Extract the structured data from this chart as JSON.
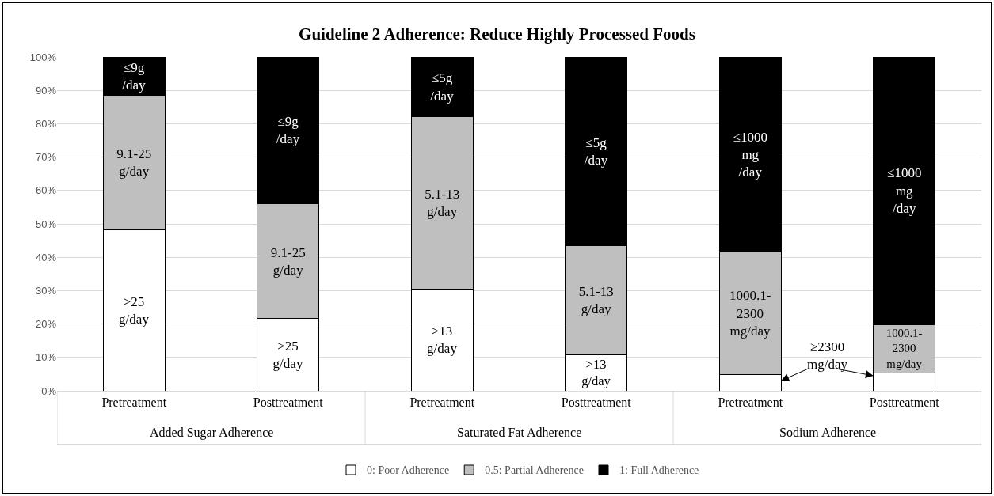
{
  "chart_data": {
    "type": "bar",
    "title": "Guideline 2 Adherence: Reduce Highly Processed Foods",
    "categories": [
      "Pretreatment",
      "Posttreatment",
      "Pretreatment",
      "Posttreatment",
      "Pretreatment",
      "Posttreatment"
    ],
    "stacked": true,
    "series": [
      {
        "name": "0: Poor Adherence",
        "color": "#ffffff",
        "values": [
          48.3,
          21.6,
          30.4,
          10.9,
          4.8,
          5.4
        ],
        "value_labels": [
          ">25\ng/day",
          ">25\ng/day",
          ">13\ng/day",
          ">13\ng/day",
          null,
          null
        ]
      },
      {
        "name": "0.5: Partial Adherence",
        "color": "#bfbfbf",
        "values": [
          40.2,
          34.5,
          51.6,
          32.6,
          36.8,
          14.5
        ],
        "value_labels": [
          "9.1-25\ng/day",
          "9.1-25\ng/day",
          "5.1-13\ng/day",
          "5.1-13\ng/day",
          "1000.1-\n2300\nmg/day",
          "1000.1-\n2300\nmg/day"
        ]
      },
      {
        "name": "1: Full Adherence",
        "color": "#000000",
        "values": [
          11.5,
          43.9,
          18.0,
          56.5,
          58.4,
          80.1
        ],
        "value_labels": [
          "≤9g\n/day",
          "≤9g\n/day",
          "≤5g\n/day",
          "≤5g\n/day",
          "≤1000\nmg\n/day",
          "≤1000\nmg\n/day"
        ]
      }
    ],
    "annotations": [
      "Added Sugar Adherence",
      "Saturated Fat Adherence",
      "Sodium Adherence",
      "≥2300\nmg/day"
    ],
    "ylim": [
      0,
      100
    ],
    "yticks": [
      {
        "value": 0,
        "label": "0%"
      },
      {
        "value": 10,
        "label": "10%"
      },
      {
        "value": 20,
        "label": "20%"
      },
      {
        "value": 30,
        "label": "30%"
      },
      {
        "value": 40,
        "label": "40%"
      },
      {
        "value": 50,
        "label": "50%"
      },
      {
        "value": 60,
        "label": "60%"
      },
      {
        "value": 70,
        "label": "70%"
      },
      {
        "value": 80,
        "label": "80%"
      },
      {
        "value": 90,
        "label": "90%"
      },
      {
        "value": 100,
        "label": "100%"
      }
    ],
    "grid": "y",
    "legend": "bottom"
  }
}
